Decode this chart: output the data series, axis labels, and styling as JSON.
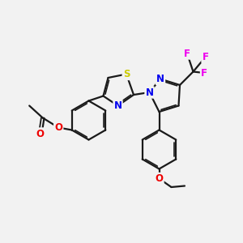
{
  "background_color": "#f2f2f2",
  "bond_color": "#1a1a1a",
  "bond_width": 1.6,
  "dbo": 0.06,
  "atom_colors": {
    "N": "#0000ee",
    "S": "#cccc00",
    "O": "#ee0000",
    "F": "#ee00ee",
    "C": "#1a1a1a"
  },
  "fs": 8.5
}
